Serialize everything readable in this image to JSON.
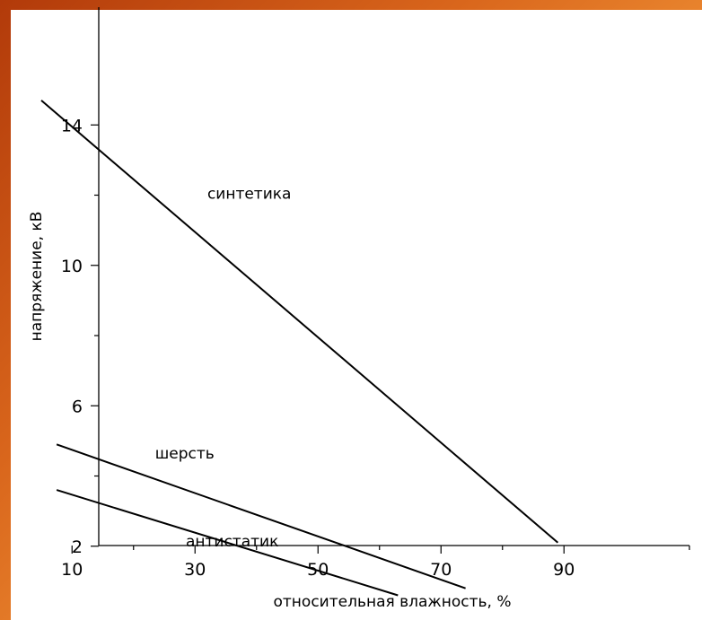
{
  "chart_data": {
    "type": "line",
    "title": "",
    "xlabel": "относительная влажность, %",
    "ylabel": "напряжение, кВ",
    "xlim": [
      0,
      100
    ],
    "ylim": [
      0,
      16
    ],
    "x_ticks_major": [
      10,
      30,
      50,
      70,
      90
    ],
    "x_tick_labels": [
      "10",
      "30",
      "50",
      "70",
      "90"
    ],
    "x_ticks_minor": [
      20,
      40,
      60,
      80
    ],
    "y_ticks_major": [
      2,
      6,
      10,
      14
    ],
    "y_tick_labels": [
      "2",
      "6",
      "10",
      "14"
    ],
    "y_ticks_minor": [
      4,
      8,
      12
    ],
    "grid": false,
    "legend": "none",
    "series": [
      {
        "name": "синтетика",
        "points": [
          [
            5,
            14.7
          ],
          [
            89,
            2.1
          ]
        ],
        "label_at": [
          32,
          11.9
        ]
      },
      {
        "name": "шерсть",
        "points": [
          [
            7.5,
            4.9
          ],
          [
            74,
            0.8
          ]
        ],
        "label_at": [
          23.5,
          4.5
        ]
      },
      {
        "name": "антистатик",
        "points": [
          [
            7.5,
            3.6
          ],
          [
            63,
            0.6
          ]
        ],
        "label_at": [
          28.5,
          2.0
        ]
      }
    ]
  }
}
